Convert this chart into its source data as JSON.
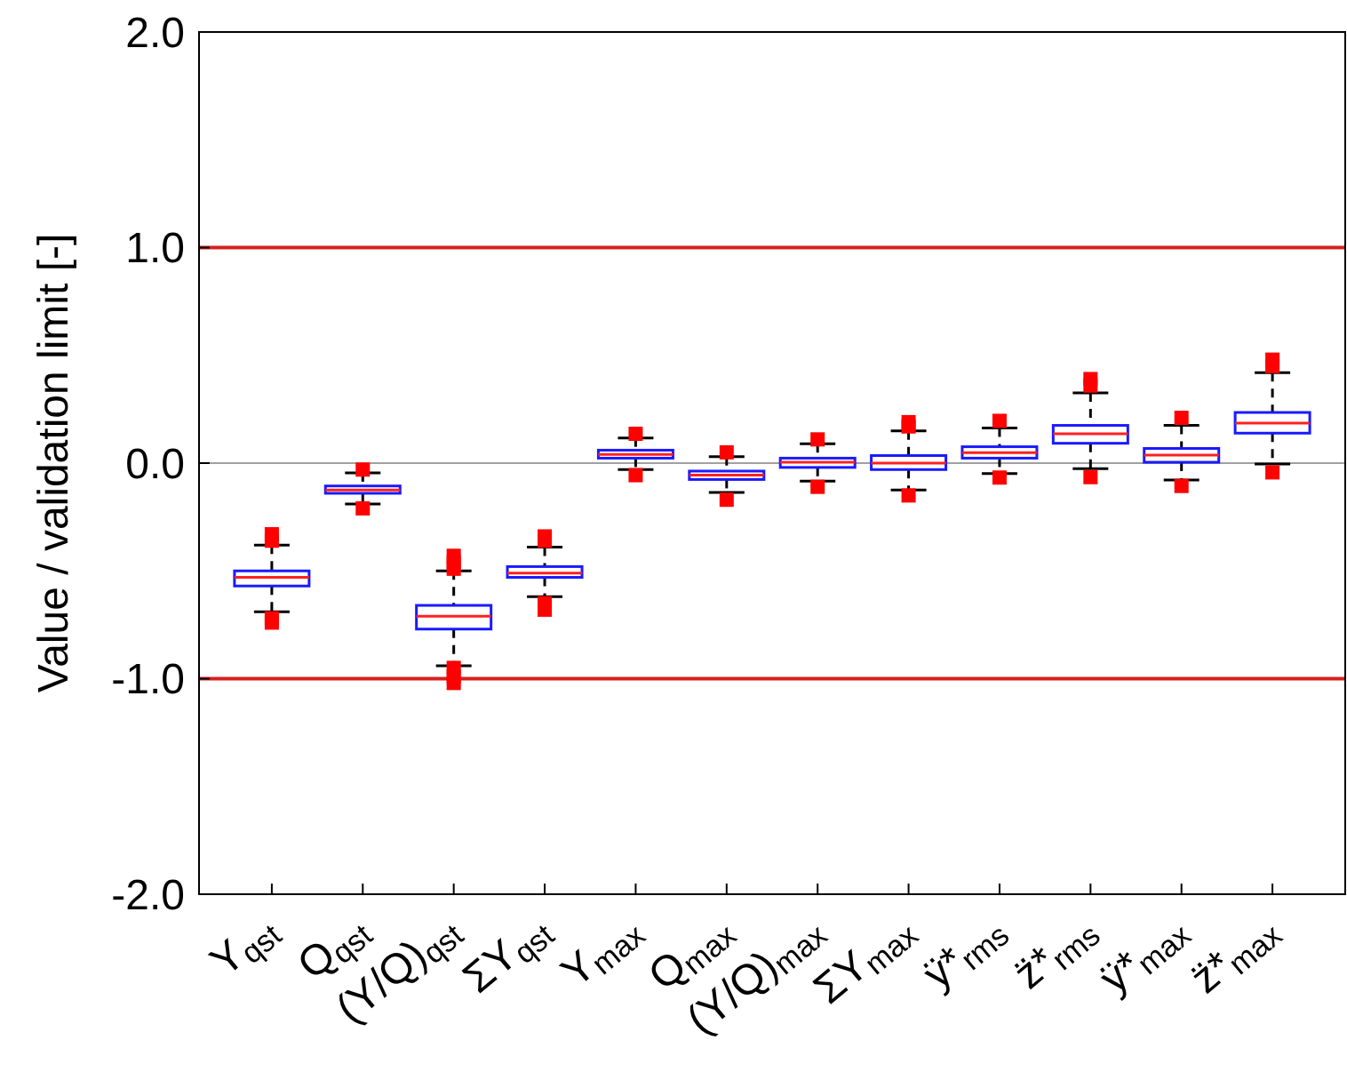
{
  "chart_data": {
    "type": "box",
    "ylabel": "Value / validation limit [-]",
    "categories": [
      "Y$_{qst}$",
      "Q$_{qst}$",
      "(Y/Q)$_{qst}$",
      "ΣY$_{qst}$",
      "Y$_{max}$",
      "Q$_{max}$",
      "(Y/Q)$_{max}$",
      "ΣY$_{max}$",
      "ÿ*$_{rms}$",
      "z̈*$_{rms}$",
      "ÿ*$_{max}$",
      "z̈*$_{max}$"
    ],
    "boxes": [
      {
        "low": -0.69,
        "q1": -0.57,
        "median": -0.53,
        "q3": -0.5,
        "high": -0.38,
        "outliers": [
          -0.33,
          -0.36,
          -0.72,
          -0.74
        ]
      },
      {
        "low": -0.19,
        "q1": -0.14,
        "median": -0.125,
        "q3": -0.106,
        "high": -0.045,
        "outliers": [
          -0.03,
          -0.21
        ]
      },
      {
        "low": -0.94,
        "q1": -0.77,
        "median": -0.71,
        "q3": -0.66,
        "high": -0.5,
        "outliers": [
          -0.43,
          -0.46,
          -0.49,
          -0.95,
          -0.99,
          -1.02
        ]
      },
      {
        "low": -0.62,
        "q1": -0.53,
        "median": -0.51,
        "q3": -0.48,
        "high": -0.39,
        "outliers": [
          -0.34,
          -0.36,
          -0.65,
          -0.68
        ]
      },
      {
        "low": -0.03,
        "q1": 0.023,
        "median": 0.04,
        "q3": 0.06,
        "high": 0.117,
        "outliers": [
          0.136,
          -0.056
        ]
      },
      {
        "low": -0.136,
        "q1": -0.076,
        "median": -0.056,
        "q3": -0.037,
        "high": 0.03,
        "outliers": [
          0.05,
          -0.17
        ]
      },
      {
        "low": -0.084,
        "q1": -0.02,
        "median": 0.004,
        "q3": 0.023,
        "high": 0.09,
        "outliers": [
          0.11,
          -0.11
        ]
      },
      {
        "low": -0.125,
        "q1": -0.03,
        "median": 0.0,
        "q3": 0.035,
        "high": 0.15,
        "outliers": [
          0.17,
          0.19,
          -0.15
        ]
      },
      {
        "low": -0.048,
        "q1": 0.023,
        "median": 0.048,
        "q3": 0.076,
        "high": 0.163,
        "outliers": [
          0.196,
          -0.067
        ]
      },
      {
        "low": -0.026,
        "q1": 0.092,
        "median": 0.136,
        "q3": 0.175,
        "high": 0.326,
        "outliers": [
          0.36,
          0.39,
          -0.065
        ]
      },
      {
        "low": -0.078,
        "q1": 0.004,
        "median": 0.037,
        "q3": 0.068,
        "high": 0.175,
        "outliers": [
          0.21,
          -0.106
        ]
      },
      {
        "low": -0.004,
        "q1": 0.139,
        "median": 0.186,
        "q3": 0.235,
        "high": 0.42,
        "outliers": [
          0.45,
          0.48,
          -0.043
        ]
      }
    ],
    "ylim": [
      -2,
      2
    ],
    "yticks": [
      {
        "value": -2,
        "label": "-2.0"
      },
      {
        "value": -1,
        "label": "-1.0"
      },
      {
        "value": 0,
        "label": "0.0"
      },
      {
        "value": 1,
        "label": "1.0"
      },
      {
        "value": 2,
        "label": "2.0"
      }
    ],
    "ref_lines": [
      {
        "axis": "y",
        "value": 1,
        "color": "#d62020"
      },
      {
        "axis": "y",
        "value": -1,
        "color": "#d62020"
      },
      {
        "axis": "y",
        "value": 0,
        "color": "#a0a0a0"
      }
    ],
    "grid": false
  }
}
